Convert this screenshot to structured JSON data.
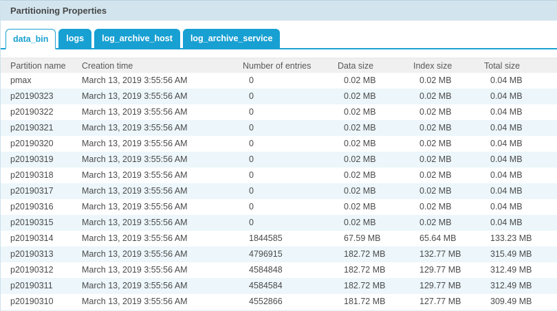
{
  "panel": {
    "title": "Partitioning Properties"
  },
  "tabs": [
    {
      "label": "data_bin",
      "active": true
    },
    {
      "label": "logs",
      "active": false
    },
    {
      "label": "log_archive_host",
      "active": false
    },
    {
      "label": "log_archive_service",
      "active": false
    }
  ],
  "table": {
    "columns": [
      "Partition name",
      "Creation time",
      "Number of entries",
      "Data size",
      "Index size",
      "Total size"
    ],
    "rows": [
      [
        "pmax",
        "March 13, 2019 3:55:56 AM",
        "0",
        "0.02 MB",
        "0.02 MB",
        "0.04 MB"
      ],
      [
        "p20190323",
        "March 13, 2019 3:55:56 AM",
        "0",
        "0.02 MB",
        "0.02 MB",
        "0.04 MB"
      ],
      [
        "p20190322",
        "March 13, 2019 3:55:56 AM",
        "0",
        "0.02 MB",
        "0.02 MB",
        "0.04 MB"
      ],
      [
        "p20190321",
        "March 13, 2019 3:55:56 AM",
        "0",
        "0.02 MB",
        "0.02 MB",
        "0.04 MB"
      ],
      [
        "p20190320",
        "March 13, 2019 3:55:56 AM",
        "0",
        "0.02 MB",
        "0.02 MB",
        "0.04 MB"
      ],
      [
        "p20190319",
        "March 13, 2019 3:55:56 AM",
        "0",
        "0.02 MB",
        "0.02 MB",
        "0.04 MB"
      ],
      [
        "p20190318",
        "March 13, 2019 3:55:56 AM",
        "0",
        "0.02 MB",
        "0.02 MB",
        "0.04 MB"
      ],
      [
        "p20190317",
        "March 13, 2019 3:55:56 AM",
        "0",
        "0.02 MB",
        "0.02 MB",
        "0.04 MB"
      ],
      [
        "p20190316",
        "March 13, 2019 3:55:56 AM",
        "0",
        "0.02 MB",
        "0.02 MB",
        "0.04 MB"
      ],
      [
        "p20190315",
        "March 13, 2019 3:55:56 AM",
        "0",
        "0.02 MB",
        "0.02 MB",
        "0.04 MB"
      ],
      [
        "p20190314",
        "March 13, 2019 3:55:56 AM",
        "1844585",
        "67.59 MB",
        "65.64 MB",
        "133.23 MB"
      ],
      [
        "p20190313",
        "March 13, 2019 3:55:56 AM",
        "4796915",
        "182.72 MB",
        "132.77 MB",
        "315.49 MB"
      ],
      [
        "p20190312",
        "March 13, 2019 3:55:56 AM",
        "4584848",
        "182.72 MB",
        "129.77 MB",
        "312.49 MB"
      ],
      [
        "p20190311",
        "March 13, 2019 3:55:56 AM",
        "4584584",
        "182.72 MB",
        "129.77 MB",
        "312.49 MB"
      ],
      [
        "p20190310",
        "March 13, 2019 3:55:56 AM",
        "4552866",
        "181.72 MB",
        "127.77 MB",
        "309.49 MB"
      ]
    ]
  },
  "colors": {
    "accent": "#18a0d2",
    "titlebar_bg": "#d2e5ef",
    "row_alt": "#ecf6fb",
    "thead_bg": "#f0f0f0"
  }
}
